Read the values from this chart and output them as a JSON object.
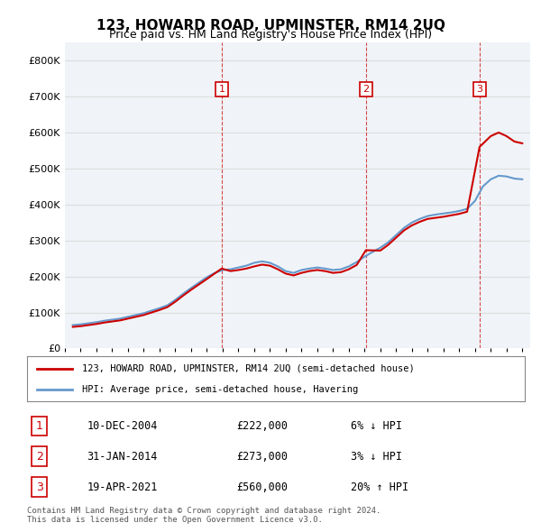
{
  "title": "123, HOWARD ROAD, UPMINSTER, RM14 2UQ",
  "subtitle": "Price paid vs. HM Land Registry's House Price Index (HPI)",
  "footer": "Contains HM Land Registry data © Crown copyright and database right 2024.\nThis data is licensed under the Open Government Licence v3.0.",
  "legend_line1": "123, HOWARD ROAD, UPMINSTER, RM14 2UQ (semi-detached house)",
  "legend_line2": "HPI: Average price, semi-detached house, Havering",
  "ylim": [
    0,
    800000
  ],
  "ytick_labels": [
    "£0",
    "£100K",
    "£200K",
    "£300K",
    "£400K",
    "£500K",
    "£600K",
    "£700K",
    "£800K"
  ],
  "ytick_values": [
    0,
    100000,
    200000,
    300000,
    400000,
    500000,
    600000,
    700000,
    800000
  ],
  "sale_color": "#cc0000",
  "hpi_color": "#6699cc",
  "vline_color": "#cc0000",
  "transactions": [
    {
      "num": 1,
      "date": "10-DEC-2004",
      "price": 222000,
      "year": 2004.94,
      "pct": "6%",
      "dir": "↓"
    },
    {
      "num": 2,
      "date": "31-JAN-2014",
      "price": 273000,
      "year": 2014.08,
      "pct": "3%",
      "dir": "↓"
    },
    {
      "num": 3,
      "date": "19-APR-2021",
      "price": 560000,
      "year": 2021.29,
      "pct": "20%",
      "dir": "↑"
    }
  ],
  "hpi_data": {
    "years": [
      1995.5,
      1996.0,
      1996.5,
      1997.0,
      1997.5,
      1998.0,
      1998.5,
      1999.0,
      1999.5,
      2000.0,
      2000.5,
      2001.0,
      2001.5,
      2002.0,
      2002.5,
      2003.0,
      2003.5,
      2004.0,
      2004.5,
      2005.0,
      2005.5,
      2006.0,
      2006.5,
      2007.0,
      2007.5,
      2008.0,
      2008.5,
      2009.0,
      2009.5,
      2010.0,
      2010.5,
      2011.0,
      2011.5,
      2012.0,
      2012.5,
      2013.0,
      2013.5,
      2014.0,
      2014.5,
      2015.0,
      2015.5,
      2016.0,
      2016.5,
      2017.0,
      2017.5,
      2018.0,
      2018.5,
      2019.0,
      2019.5,
      2020.0,
      2020.5,
      2021.0,
      2021.5,
      2022.0,
      2022.5,
      2023.0,
      2023.5,
      2024.0
    ],
    "values": [
      65000,
      67000,
      70000,
      73000,
      77000,
      80000,
      83000,
      88000,
      93000,
      98000,
      105000,
      112000,
      120000,
      135000,
      152000,
      168000,
      183000,
      198000,
      210000,
      218000,
      220000,
      225000,
      230000,
      238000,
      242000,
      238000,
      228000,
      215000,
      210000,
      218000,
      222000,
      225000,
      222000,
      218000,
      220000,
      228000,
      240000,
      255000,
      268000,
      280000,
      295000,
      315000,
      335000,
      350000,
      360000,
      368000,
      372000,
      375000,
      378000,
      382000,
      388000,
      410000,
      450000,
      470000,
      480000,
      478000,
      472000,
      470000
    ]
  },
  "sale_data": {
    "years": [
      1995.5,
      1996.0,
      1996.5,
      1997.0,
      1997.5,
      1998.0,
      1998.5,
      1999.0,
      1999.5,
      2000.0,
      2000.5,
      2001.0,
      2001.5,
      2002.0,
      2002.5,
      2003.0,
      2003.5,
      2004.0,
      2004.94,
      2005.5,
      2006.0,
      2006.5,
      2007.0,
      2007.5,
      2008.0,
      2008.5,
      2009.0,
      2009.5,
      2010.0,
      2010.5,
      2011.0,
      2011.5,
      2012.0,
      2012.5,
      2013.0,
      2013.5,
      2014.08,
      2015.0,
      2015.5,
      2016.0,
      2016.5,
      2017.0,
      2017.5,
      2018.0,
      2018.5,
      2019.0,
      2019.5,
      2020.0,
      2020.5,
      2021.29,
      2022.0,
      2022.5,
      2023.0,
      2023.5,
      2024.0
    ],
    "values": [
      60000,
      62000,
      65000,
      68000,
      72000,
      75000,
      78000,
      83000,
      88000,
      93000,
      100000,
      107000,
      115000,
      130000,
      147000,
      163000,
      178000,
      193000,
      222000,
      215000,
      218000,
      222000,
      228000,
      233000,
      230000,
      220000,
      208000,
      203000,
      210000,
      215000,
      218000,
      215000,
      210000,
      212000,
      220000,
      232000,
      273000,
      272000,
      288000,
      308000,
      328000,
      342000,
      352000,
      360000,
      363000,
      366000,
      370000,
      374000,
      380000,
      560000,
      590000,
      600000,
      590000,
      575000,
      570000
    ]
  },
  "background_color": "#ffffff",
  "grid_color": "#dddddd",
  "plot_bg": "#f0f4f8"
}
